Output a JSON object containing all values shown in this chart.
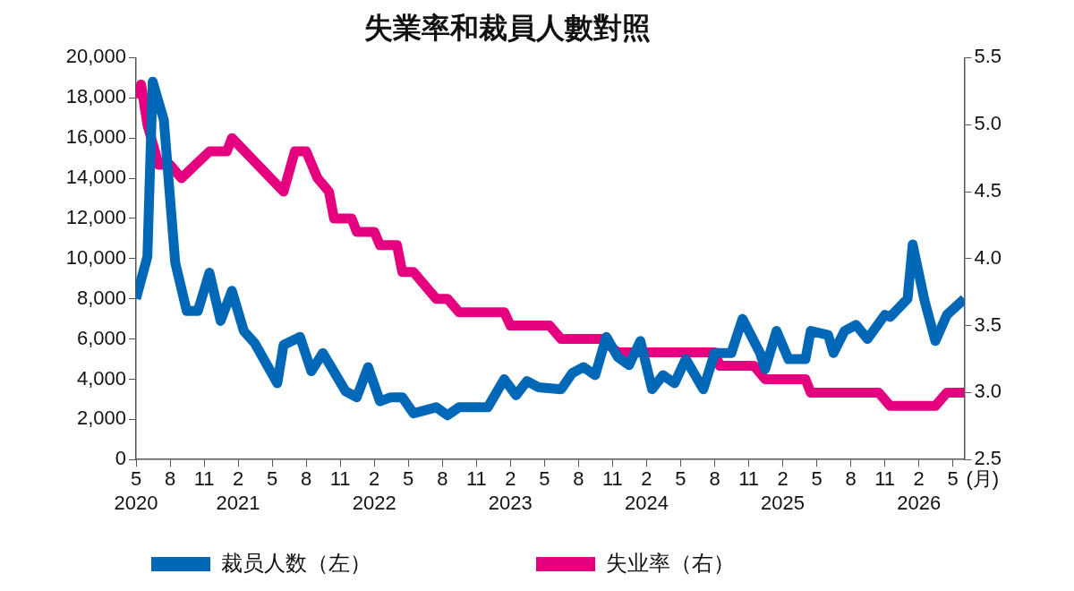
{
  "chart_data": {
    "type": "line",
    "title": "失業率和裁員人數對照",
    "xlabel": "(月)",
    "xlim": [
      "2020-05",
      "2026-06"
    ],
    "xticks": [
      {
        "value": "2020-05",
        "label": "5\n2020"
      },
      {
        "value": "2020-08",
        "label": "8"
      },
      {
        "value": "2020-11",
        "label": "11"
      },
      {
        "value": "2021-02",
        "label": "2\n2021"
      },
      {
        "value": "2021-05",
        "label": "5"
      },
      {
        "value": "2021-08",
        "label": "8"
      },
      {
        "value": "2021-11",
        "label": "11"
      },
      {
        "value": "2022-02",
        "label": "2\n2022"
      },
      {
        "value": "2022-05",
        "label": "5"
      },
      {
        "value": "2022-08",
        "label": "8"
      },
      {
        "value": "2022-11",
        "label": "11"
      },
      {
        "value": "2023-02",
        "label": "2\n2023"
      },
      {
        "value": "2023-05",
        "label": "5"
      },
      {
        "value": "2023-08",
        "label": "8"
      },
      {
        "value": "2023-11",
        "label": "11"
      },
      {
        "value": "2024-02",
        "label": "2\n2024"
      },
      {
        "value": "2024-05",
        "label": "5"
      },
      {
        "value": "2024-08",
        "label": "8"
      },
      {
        "value": "2024-11",
        "label": "11"
      },
      {
        "value": "2025-02",
        "label": "2\n2025"
      },
      {
        "value": "2025-05",
        "label": "5"
      },
      {
        "value": "2025-08",
        "label": "8"
      },
      {
        "value": "2025-11",
        "label": "11"
      },
      {
        "value": "2026-02",
        "label": "2\n2026"
      },
      {
        "value": "2026-05",
        "label": "5"
      }
    ],
    "ylim": [
      0,
      20000
    ],
    "yticks": [
      0,
      {
        "value": 2000,
        "label": "2,000"
      },
      {
        "value": 4000,
        "label": "4,000"
      },
      {
        "value": 6000,
        "label": "6,000"
      },
      {
        "value": 8000,
        "label": "8,000"
      },
      {
        "value": 10000,
        "label": "10,000"
      },
      {
        "value": 12000,
        "label": "12,000"
      },
      {
        "value": 14000,
        "label": "14,000"
      },
      {
        "value": 16000,
        "label": "16,000"
      },
      {
        "value": 18000,
        "label": "18,000"
      },
      {
        "value": 20000,
        "label": "20,000"
      }
    ],
    "y2lim": [
      2.5,
      5.5
    ],
    "y2ticks": [
      2.5,
      {
        "value": 3,
        "label": "3.0"
      },
      3.5,
      {
        "value": 4,
        "label": "4.0"
      },
      4.5,
      {
        "value": 5,
        "label": "5.0"
      },
      5.5
    ],
    "grid": false,
    "legend": "bottom",
    "marker": "none",
    "line_style": "solid",
    "series": [
      {
        "name": "裁员人数（左）",
        "color": "#0068b7",
        "x": [
          "2020-05",
          "2020-06",
          "2020-06-15",
          "2020-07-15",
          "2020-08-15",
          "2020-09-15",
          "2020-10-15",
          "2020-11-15",
          "2020-12-15",
          "2021-01-15",
          "2021-02-15",
          "2021-03-15",
          "2021-05-15",
          "2021-06",
          "2021-07-15",
          "2021-08-15",
          "2021-09-15",
          "2021-11-15",
          "2021-12-15",
          "2022-01-15",
          "2022-02-15",
          "2022-03-15",
          "2022-04-15",
          "2022-05-15",
          "2022-07-15",
          "2022-08-15",
          "2022-09-15",
          "2022-12",
          "2023-01-15",
          "2023-02-15",
          "2023-03-15",
          "2023-04-15",
          "2023-06-15",
          "2023-07-15",
          "2023-08-15",
          "2023-09-15",
          "2023-10-15",
          "2023-11-15",
          "2023-12-15",
          "2024-01-15",
          "2024-02-15",
          "2024-03-15",
          "2024-04-15",
          "2024-05-15",
          "2024-07",
          "2024-08",
          "2024-09-15",
          "2024-10-15",
          "2024-12",
          "2024-12-15",
          "2025-01-15",
          "2025-02-15",
          "2025-04",
          "2025-04-15",
          "2025-06",
          "2025-06-15",
          "2025-07-15",
          "2025-08-15",
          "2025-09-15",
          "2025-11",
          "2025-11-15",
          "2026-01",
          "2026-01-15",
          "2026-02-15",
          "2026-03-15",
          "2026-04-15",
          "2026-06"
        ],
        "values": [
          8000,
          10100,
          18800,
          16900,
          9800,
          7400,
          7400,
          9300,
          6900,
          8400,
          6400,
          5800,
          3800,
          5700,
          6100,
          4400,
          5300,
          3400,
          3100,
          4600,
          2900,
          3100,
          3100,
          2300,
          2600,
          2200,
          2600,
          2600,
          4000,
          3200,
          3900,
          3600,
          3500,
          4300,
          4600,
          4200,
          6100,
          5100,
          4700,
          5900,
          3500,
          4200,
          3800,
          5000,
          3500,
          5300,
          5300,
          7000,
          5300,
          4500,
          6400,
          5000,
          5000,
          6400,
          6200,
          5300,
          6400,
          6700,
          6000,
          7200,
          7100,
          8000,
          10700,
          7900,
          5900,
          7200,
          8000
        ]
      },
      {
        "name": "失业率（右）",
        "color": "#e4007f",
        "axis": "y2",
        "x": [
          "2020-05",
          "2020-05-15",
          "2020-06",
          "2020-07",
          "2020-08",
          "2020-09",
          "2020-11-15",
          "2021-01",
          "2021-01-15",
          "2021-06",
          "2021-07",
          "2021-08",
          "2021-09",
          "2021-10",
          "2021-10-15",
          "2021-12",
          "2021-12-15",
          "2022-02",
          "2022-02-15",
          "2022-04",
          "2022-04-15",
          "2022-05-15",
          "2022-07-15",
          "2022-08-15",
          "2022-09-15",
          "2023-01-15",
          "2023-02",
          "2023-05-15",
          "2023-06-15",
          "2023-10",
          "2023-11-15",
          "2024-08",
          "2024-08-15",
          "2024-11-15",
          "2024-12-15",
          "2025-04",
          "2025-04-15",
          "2025-10-15",
          "2025-11-15",
          "2026-03-15",
          "2026-04-15",
          "2026-06"
        ],
        "values": [
          5.2,
          5.3,
          5.0,
          4.7,
          4.7,
          4.6,
          4.8,
          4.8,
          4.9,
          4.5,
          4.8,
          4.8,
          4.6,
          4.5,
          4.3,
          4.3,
          4.2,
          4.2,
          4.1,
          4.1,
          3.9,
          3.9,
          3.7,
          3.7,
          3.6,
          3.6,
          3.5,
          3.5,
          3.4,
          3.4,
          3.3,
          3.3,
          3.2,
          3.2,
          3.1,
          3.1,
          3.0,
          3.0,
          2.9,
          2.9,
          3.0,
          3.0
        ]
      }
    ]
  }
}
